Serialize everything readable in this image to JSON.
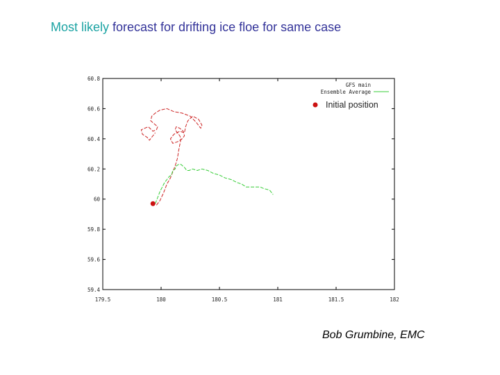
{
  "title": {
    "highlight": "Most likely",
    "rest": " forecast for drifting ice floe for same case"
  },
  "author": "Bob Grumbine, EMC",
  "colors": {
    "title_highlight": "#1ba3a3",
    "title_text": "#333399",
    "gfs": "#cc2222",
    "ensemble": "#33cc33",
    "initial": "#cc1111"
  },
  "chart_data": {
    "type": "line",
    "title": "",
    "xlabel": "",
    "ylabel": "",
    "xlim": [
      179.5,
      182
    ],
    "ylim": [
      59.4,
      60.8
    ],
    "grid": false,
    "legend_position": "top-right",
    "x_ticks": [
      {
        "value": 179.5,
        "label": "179.5"
      },
      {
        "value": 180,
        "label": "180"
      },
      {
        "value": 180.5,
        "label": "180.5"
      },
      {
        "value": 181,
        "label": "181"
      },
      {
        "value": 181.5,
        "label": "181.5"
      },
      {
        "value": 182,
        "label": "182"
      }
    ],
    "y_ticks": [
      {
        "value": 60.8,
        "label": "60.8"
      },
      {
        "value": 60.6,
        "label": "60.6"
      },
      {
        "value": 60.4,
        "label": "60.4"
      },
      {
        "value": 60.2,
        "label": "60.2"
      },
      {
        "value": 60,
        "label": "60"
      },
      {
        "value": 59.8,
        "label": "59.8"
      },
      {
        "value": 59.6,
        "label": "59.6"
      },
      {
        "value": 59.4,
        "label": "59.4"
      }
    ],
    "series": [
      {
        "name": "GFS main",
        "color": "#cc2222",
        "x": [
          179.96,
          179.99,
          180.02,
          180.05,
          180.08,
          180.1,
          180.12,
          180.14,
          180.15,
          180.16,
          180.17,
          180.16,
          180.14,
          180.12,
          180.13,
          180.16,
          180.19,
          180.2,
          180.18,
          180.14,
          180.1,
          180.08,
          180.11,
          180.16,
          180.2,
          180.21,
          180.23,
          180.27,
          180.32,
          180.35,
          180.34,
          180.3,
          180.25,
          180.18,
          180.11,
          180.05,
          179.99,
          179.95,
          179.92,
          179.91,
          179.94,
          179.97,
          179.96,
          179.93,
          179.89,
          179.83,
          179.84,
          179.88,
          179.9,
          179.93,
          179.95
        ],
        "y": [
          59.96,
          59.99,
          60.04,
          60.1,
          60.14,
          60.18,
          60.22,
          60.27,
          60.32,
          60.36,
          60.4,
          60.42,
          60.44,
          60.46,
          60.48,
          60.47,
          60.45,
          60.42,
          60.4,
          60.38,
          60.37,
          60.4,
          60.43,
          60.45,
          60.44,
          60.48,
          60.52,
          60.55,
          60.53,
          60.49,
          60.47,
          60.51,
          60.55,
          60.57,
          60.58,
          60.6,
          60.59,
          60.57,
          60.55,
          60.52,
          60.5,
          60.48,
          60.46,
          60.45,
          60.48,
          60.46,
          60.43,
          60.41,
          60.39,
          60.42,
          60.44
        ]
      },
      {
        "name": "Ensemble Average",
        "color": "#33cc33",
        "x": [
          179.95,
          179.97,
          179.99,
          180.01,
          180.03,
          180.05,
          180.07,
          180.09,
          180.1,
          180.12,
          180.13,
          180.15,
          180.17,
          180.2,
          180.22,
          180.24,
          180.27,
          180.31,
          180.35,
          180.4,
          180.45,
          180.5,
          180.55,
          180.6,
          180.65,
          180.69,
          180.73,
          180.78,
          180.82,
          180.85,
          180.88,
          180.93,
          180.96
        ],
        "y": [
          59.97,
          60.01,
          60.05,
          60.08,
          60.11,
          60.13,
          60.15,
          60.16,
          60.19,
          60.2,
          60.22,
          60.23,
          60.23,
          60.21,
          60.19,
          60.19,
          60.2,
          60.19,
          60.2,
          60.19,
          60.17,
          60.16,
          60.14,
          60.13,
          60.11,
          60.1,
          60.08,
          60.08,
          60.08,
          60.08,
          60.07,
          60.06,
          60.03
        ]
      }
    ],
    "initial_position": {
      "label": "Initial position",
      "x": 179.93,
      "y": 59.97
    }
  }
}
